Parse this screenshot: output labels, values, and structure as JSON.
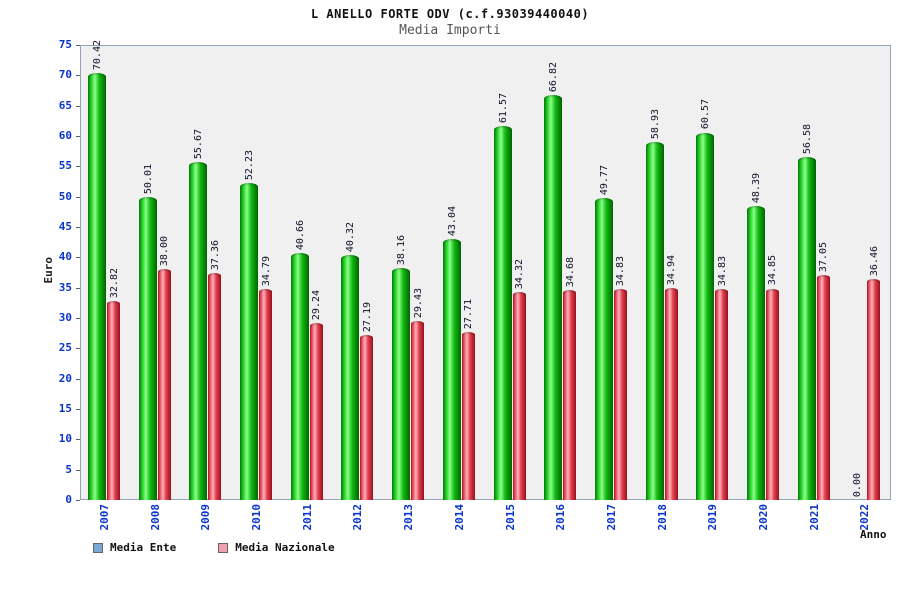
{
  "chart_data": {
    "type": "bar",
    "title": "L ANELLO FORTE ODV (c.f.93039440040)",
    "subtitle": "Media Importi",
    "xlabel": "Anno",
    "ylabel": "Euro",
    "ylim": [
      0,
      75
    ],
    "y_ticks": [
      0,
      5,
      10,
      15,
      20,
      25,
      30,
      35,
      40,
      45,
      50,
      55,
      60,
      65,
      70,
      75
    ],
    "grid": "off",
    "legend_position": "bottom-left",
    "plot_background": "#f0f0f0",
    "axis_text_color": "#0a35cc",
    "categories": [
      "2007",
      "2008",
      "2009",
      "2010",
      "2011",
      "2012",
      "2013",
      "2014",
      "2015",
      "2016",
      "2017",
      "2018",
      "2019",
      "2020",
      "2021",
      "2022"
    ],
    "series": [
      {
        "name": "Media Ente",
        "color": "#13bb13",
        "legend_color": "#7aa8d6",
        "values": [
          70.42,
          50.01,
          55.67,
          52.23,
          40.66,
          40.32,
          38.16,
          43.04,
          61.57,
          66.82,
          49.77,
          58.93,
          60.57,
          48.39,
          56.58,
          0.0
        ]
      },
      {
        "name": "Media Nazionale",
        "color": "#e04050",
        "legend_color": "#f0a0b0",
        "values": [
          32.82,
          38.0,
          37.36,
          34.79,
          29.24,
          27.19,
          29.43,
          27.71,
          34.32,
          34.68,
          34.83,
          34.94,
          34.83,
          34.85,
          37.05,
          36.46
        ]
      }
    ]
  }
}
